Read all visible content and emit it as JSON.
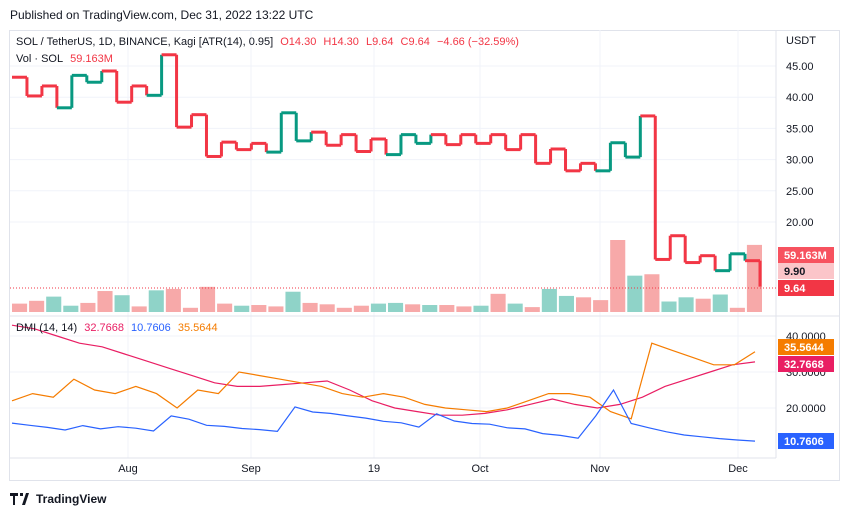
{
  "publisher": "Published on TradingView.com, Dec 31, 2022 13:22 UTC",
  "legend_main": {
    "symbol": "SOL / TetherUS, 1D, BINANCE, Kagi [ATR(14), 0.95]",
    "o": "O14.30",
    "h": "H14.30",
    "l": "L9.64",
    "c": "C9.64",
    "change": "−4.66 (−32.59%)"
  },
  "legend_vol": {
    "label": "Vol · SOL",
    "value": "59.163M"
  },
  "legend_dmi": {
    "label": "DMI (14, 14)",
    "v1": "32.7668",
    "v2": "10.7606",
    "v3": "35.5644"
  },
  "currency": "USDT",
  "brand": "TradingView",
  "colors": {
    "up": "#089981",
    "down": "#f23645",
    "adx": "#e91e63",
    "plus_di": "#f57c00",
    "minus_di": "#2962ff"
  },
  "chart_data": [
    {
      "type": "line",
      "name": "Kagi price",
      "y_ticks": [
        "45.00",
        "40.00",
        "35.00",
        "30.00",
        "25.00",
        "20.00"
      ],
      "ylim": [
        7,
        50
      ],
      "x_ticks": [
        "Aug",
        "Sep",
        "19",
        "Oct",
        "Nov",
        "Dec"
      ],
      "kagi_x": [
        0,
        1,
        2,
        3,
        4,
        5,
        6,
        7,
        8,
        9,
        10,
        11,
        12,
        13,
        14,
        15,
        16,
        17,
        18,
        19,
        20,
        21,
        22,
        23,
        24,
        25,
        26,
        27,
        28,
        29,
        30,
        31,
        32,
        33,
        34,
        35,
        36,
        37,
        38,
        39,
        40,
        41,
        42,
        43,
        44,
        45,
        46,
        47,
        48,
        49,
        50
      ],
      "kagi_y": [
        43.2,
        40.2,
        41.8,
        38.3,
        43.5,
        42.4,
        44.2,
        39.2,
        41.8,
        40.3,
        46.8,
        35.2,
        37.2,
        30.5,
        32.8,
        31.6,
        32.6,
        31.2,
        37.5,
        33.0,
        34.4,
        32.3,
        34.0,
        31.3,
        33.3,
        30.8,
        34.0,
        32.6,
        34.0,
        32.4,
        34.0,
        32.6,
        34.0,
        31.6,
        34.0,
        29.4,
        31.7,
        28.2,
        29.4,
        28.2,
        32.7,
        30.4,
        37.0,
        14.0,
        17.8,
        13.5,
        14.6,
        12.2,
        14.9,
        13.8,
        9.64
      ],
      "tags": [
        "59.163M",
        "9.90",
        "9.64"
      ]
    },
    {
      "type": "bar",
      "name": "Volume",
      "values": [
        1.2,
        1.6,
        2.2,
        0.9,
        1.3,
        3.0,
        2.4,
        0.8,
        3.1,
        3.3,
        0.6,
        3.6,
        1.2,
        0.9,
        1.0,
        0.8,
        2.9,
        1.3,
        1.1,
        0.6,
        0.9,
        1.2,
        1.3,
        1.1,
        1.0,
        1.0,
        0.8,
        0.9,
        2.6,
        1.2,
        0.7,
        3.3,
        2.3,
        2.1,
        1.7,
        10.3,
        5.2,
        5.4,
        1.5,
        2.1,
        1.9,
        2.5,
        0.6,
        9.6
      ],
      "directions": [
        "d",
        "d",
        "u",
        "u",
        "d",
        "d",
        "u",
        "d",
        "u",
        "d",
        "d",
        "d",
        "d",
        "u",
        "d",
        "d",
        "u",
        "d",
        "d",
        "d",
        "d",
        "u",
        "u",
        "d",
        "u",
        "d",
        "d",
        "u",
        "d",
        "u",
        "d",
        "u",
        "u",
        "d",
        "d",
        "d",
        "u",
        "d",
        "u",
        "u",
        "d",
        "u",
        "d",
        "d"
      ]
    },
    {
      "type": "line",
      "name": "DMI",
      "y_ticks": [
        "40.0000",
        "30.0000",
        "20.0000"
      ],
      "ylim": [
        5,
        46
      ],
      "series": [
        {
          "values": [
            43,
            42,
            40,
            38,
            37,
            35,
            33,
            31,
            29,
            27,
            26,
            26,
            26.5,
            27,
            27.5,
            25,
            22,
            20,
            19,
            18,
            18,
            18.5,
            19.5,
            21,
            22.5,
            21,
            20,
            21,
            23,
            26,
            28,
            30,
            32,
            32.8
          ]
        },
        {
          "values": [
            22,
            24,
            23,
            28,
            25,
            24,
            26,
            24,
            20,
            25,
            24,
            30,
            29,
            28,
            27,
            26,
            24,
            23,
            24,
            23,
            21,
            20,
            19.5,
            19,
            20,
            22,
            24,
            24,
            23,
            19,
            17,
            38,
            36,
            34,
            32,
            32,
            35.6
          ]
        },
        {
          "values": [
            15.8,
            15.2,
            14.6,
            13.9,
            15.1,
            14.2,
            14.8,
            14.4,
            13.6,
            17.8,
            16.9,
            15.2,
            14.9,
            14.3,
            14.0,
            13.5,
            20.3,
            18.9,
            18.5,
            17.8,
            17.2,
            16.3,
            15.9,
            14.7,
            18.4,
            16.4,
            15.7,
            15.5,
            14.5,
            14.2,
            12.9,
            12.4,
            11.6,
            17.8,
            25.0,
            15.7,
            14.5,
            13.4,
            12.5,
            12.0,
            11.5,
            11.1,
            10.8
          ]
        }
      ]
    }
  ]
}
